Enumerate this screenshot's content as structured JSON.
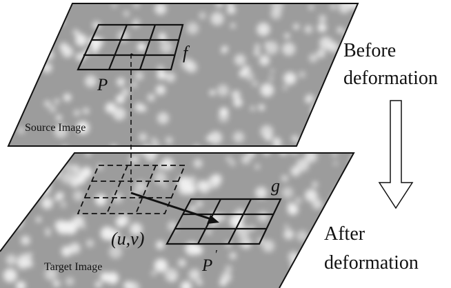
{
  "labels": {
    "source_image": "Source Image",
    "target_image": "Target Image",
    "patch_source": "P",
    "patch_target": "P",
    "patch_target_prime": "′",
    "template_f": "f",
    "template_g": "g",
    "displacement": "(u,v)",
    "before_line1": "Before",
    "before_line2": "deformation",
    "after_line1": "After",
    "after_line2": "deformation"
  },
  "colors": {
    "speckle_background": "#9c9c9c",
    "speckle_blob": "#f2f2f2",
    "outline": "#111111"
  },
  "icons": {
    "direction_arrow": "hollow-down-arrow-icon"
  }
}
